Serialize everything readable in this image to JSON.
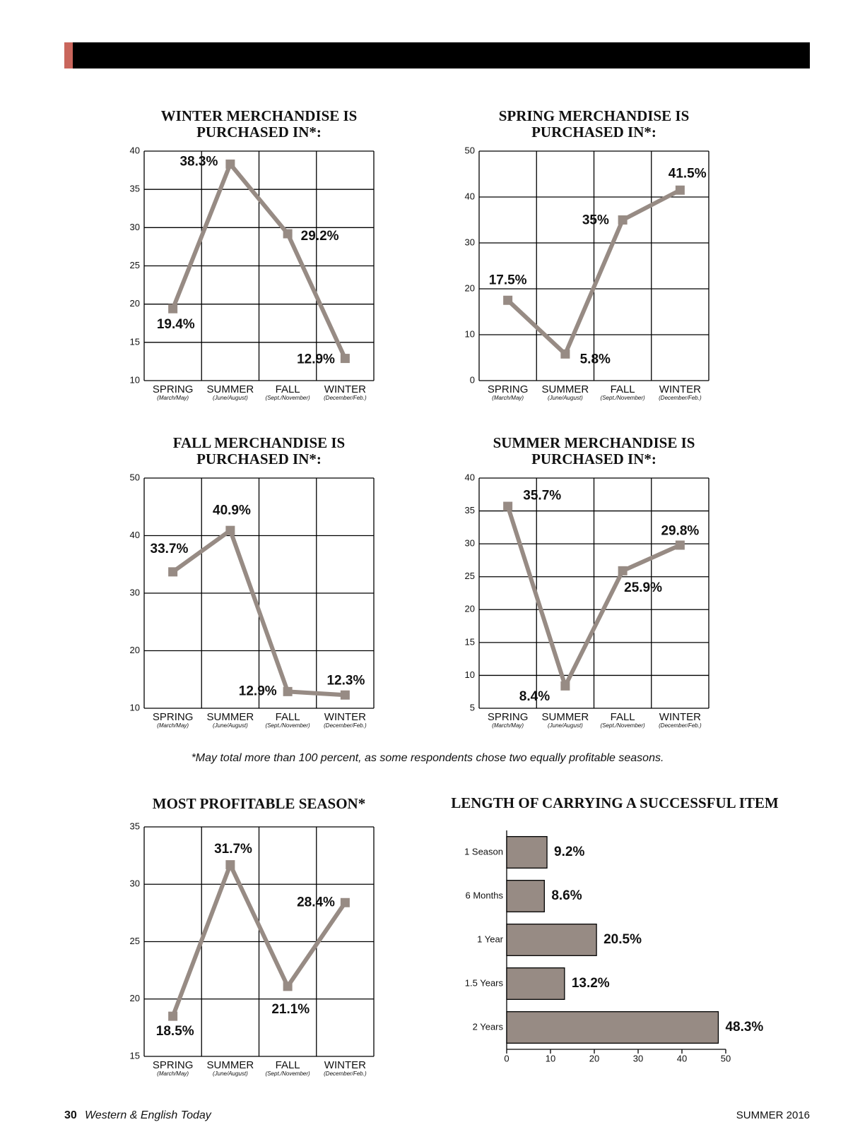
{
  "chart_data": [
    {
      "type": "line",
      "title": [
        "WINTER MERCHANDISE IS",
        "PURCHASED IN*:"
      ],
      "categories": [
        "SPRING",
        "SUMMER",
        "FALL",
        "WINTER"
      ],
      "category_notes": [
        "(March/May)",
        "(June/August)",
        "(Sept./November)",
        "(December/Feb.)"
      ],
      "values": [
        19.4,
        38.3,
        29.2,
        12.9
      ],
      "value_labels": [
        "19.4%",
        "38.3%",
        "29.2%",
        "12.9%"
      ],
      "color": "#978b84",
      "ylim": [
        10,
        40
      ],
      "yticks": [
        10,
        15,
        20,
        25,
        30,
        35,
        40
      ],
      "grid": true
    },
    {
      "type": "line",
      "title": [
        "SPRING MERCHANDISE IS",
        "PURCHASED IN*:"
      ],
      "categories": [
        "SPRING",
        "SUMMER",
        "FALL",
        "WINTER"
      ],
      "category_notes": [
        "(March/May)",
        "(June/August)",
        "(Sept./November)",
        "(December/Feb.)"
      ],
      "values": [
        17.5,
        5.8,
        35,
        41.5
      ],
      "value_labels": [
        "17.5%",
        "5.8%",
        "35%",
        "41.5%"
      ],
      "color": "#978b84",
      "ylim": [
        0,
        50
      ],
      "yticks": [
        0,
        10,
        20,
        30,
        40,
        50
      ],
      "grid": true
    },
    {
      "type": "line",
      "title": [
        "FALL MERCHANDISE IS",
        "PURCHASED IN*:"
      ],
      "categories": [
        "SPRING",
        "SUMMER",
        "FALL",
        "WINTER"
      ],
      "category_notes": [
        "(March/May)",
        "(June/August)",
        "(Sept./November)",
        "(December/Feb.)"
      ],
      "values": [
        33.7,
        40.9,
        12.9,
        12.3
      ],
      "value_labels": [
        "33.7%",
        "40.9%",
        "12.9%",
        "12.3%"
      ],
      "color": "#978b84",
      "ylim": [
        10,
        50
      ],
      "yticks": [
        10,
        20,
        30,
        40,
        50
      ],
      "grid": true
    },
    {
      "type": "line",
      "title": [
        "SUMMER MERCHANDISE IS",
        "PURCHASED IN*:"
      ],
      "categories": [
        "SPRING",
        "SUMMER",
        "FALL",
        "WINTER"
      ],
      "category_notes": [
        "(March/May)",
        "(June/August)",
        "(Sept./November)",
        "(December/Feb.)"
      ],
      "values": [
        35.7,
        8.4,
        25.9,
        29.8
      ],
      "value_labels": [
        "35.7%",
        "8.4%",
        "25.9%",
        "29.8%"
      ],
      "color": "#978b84",
      "ylim": [
        5,
        40
      ],
      "yticks": [
        5,
        10,
        15,
        20,
        25,
        30,
        35,
        40
      ],
      "grid": true
    },
    {
      "type": "line",
      "title": [
        "MOST PROFITABLE SEASON*"
      ],
      "categories": [
        "SPRING",
        "SUMMER",
        "FALL",
        "WINTER"
      ],
      "category_notes": [
        "(March/May)",
        "(June/August)",
        "(Sept./November)",
        "(December/Feb.)"
      ],
      "values": [
        18.5,
        31.7,
        21.1,
        28.4
      ],
      "value_labels": [
        "18.5%",
        "31.7%",
        "21.1%",
        "28.4%"
      ],
      "color": "#978b84",
      "ylim": [
        15,
        35
      ],
      "yticks": [
        15,
        20,
        25,
        30,
        35
      ],
      "grid": true
    },
    {
      "type": "barh",
      "title": [
        "LENGTH OF CARRYING A SUCCESSFUL ITEM"
      ],
      "categories": [
        "1 Season",
        "6 Months",
        "1 Year",
        "1.5 Years",
        "2 Years"
      ],
      "values": [
        9.2,
        8.6,
        20.5,
        13.2,
        48.3
      ],
      "value_labels": [
        "9.2%",
        "8.6%",
        "20.5%",
        "13.2%",
        "48.3%"
      ],
      "color": "#978b84",
      "xlim": [
        0,
        50
      ],
      "xticks": [
        0,
        10,
        20,
        30,
        40,
        50
      ],
      "grid": false
    }
  ],
  "footnote": "*May total more than 100 percent, as some respondents chose two equally profitable seasons.",
  "footer": {
    "page": "30",
    "publication": "Western & English Today",
    "issue": "SUMMER 2016"
  }
}
